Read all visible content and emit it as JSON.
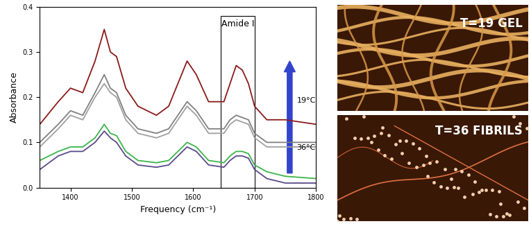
{
  "chart_data": {
    "type": "line",
    "y_label": "Absorbance",
    "x_label": "Frequency (cm⁻¹)",
    "xlim": [
      1350,
      1800
    ],
    "xticks": [
      1400,
      1500,
      1600,
      1700,
      1800
    ],
    "ylim": [
      0,
      0.4
    ],
    "yticks": [
      {
        "value": 0,
        "label": "0.0"
      },
      0.1,
      0.2,
      0.3,
      0.4
    ],
    "grid": false,
    "x": [
      1350,
      1380,
      1400,
      1420,
      1440,
      1455,
      1465,
      1475,
      1490,
      1510,
      1540,
      1560,
      1575,
      1590,
      1605,
      1625,
      1650,
      1660,
      1670,
      1680,
      1690,
      1700,
      1720,
      1750,
      1800
    ],
    "series": [
      {
        "color": "#8b1a1a",
        "values": [
          0.14,
          0.19,
          0.22,
          0.21,
          0.28,
          0.35,
          0.3,
          0.29,
          0.22,
          0.18,
          0.16,
          0.18,
          0.23,
          0.28,
          0.25,
          0.19,
          0.19,
          0.23,
          0.27,
          0.26,
          0.23,
          0.18,
          0.15,
          0.15,
          0.14
        ]
      },
      {
        "color": "#808080",
        "values": [
          0.1,
          0.14,
          0.17,
          0.16,
          0.21,
          0.25,
          0.22,
          0.21,
          0.16,
          0.13,
          0.12,
          0.13,
          0.16,
          0.19,
          0.17,
          0.13,
          0.13,
          0.15,
          0.16,
          0.155,
          0.15,
          0.12,
          0.1,
          0.1,
          0.1
        ]
      },
      {
        "color": "#a0a0a0",
        "values": [
          0.09,
          0.13,
          0.16,
          0.15,
          0.2,
          0.23,
          0.21,
          0.2,
          0.15,
          0.12,
          0.11,
          0.12,
          0.15,
          0.18,
          0.16,
          0.12,
          0.12,
          0.14,
          0.15,
          0.145,
          0.14,
          0.11,
          0.09,
          0.09,
          0.09
        ]
      },
      {
        "color": "#3cb44b",
        "values": [
          0.06,
          0.08,
          0.09,
          0.09,
          0.11,
          0.14,
          0.12,
          0.115,
          0.08,
          0.06,
          0.055,
          0.06,
          0.08,
          0.1,
          0.09,
          0.06,
          0.055,
          0.07,
          0.08,
          0.08,
          0.075,
          0.05,
          0.035,
          0.025,
          0.02
        ]
      },
      {
        "color": "#5a4a8a",
        "values": [
          0.04,
          0.07,
          0.08,
          0.08,
          0.1,
          0.125,
          0.11,
          0.1,
          0.07,
          0.05,
          0.045,
          0.05,
          0.07,
          0.09,
          0.08,
          0.05,
          0.045,
          0.06,
          0.07,
          0.07,
          0.065,
          0.04,
          0.02,
          0.01,
          0.01
        ]
      }
    ],
    "annotations": [
      {
        "text": "Amide I",
        "x_range": [
          1645,
          1700
        ]
      }
    ],
    "temperature_arrow": {
      "from": "36°C",
      "to": "19°C"
    },
    "images": [
      {
        "label": "T=19 GEL"
      },
      {
        "label": "T=36 FIBRILS"
      }
    ]
  }
}
